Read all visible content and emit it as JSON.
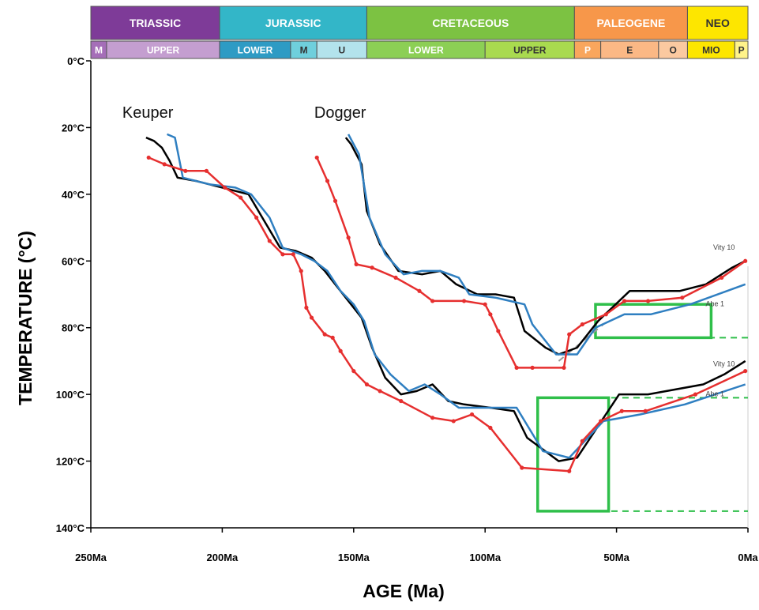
{
  "chart_data": {
    "type": "line",
    "xlabel": "AGE (Ma)",
    "ylabel": "TEMPERATURE (°C)",
    "xlim": [
      250,
      0
    ],
    "ylim": [
      0,
      140
    ],
    "y_inverted": true,
    "grid": false,
    "x_ticks": [
      {
        "value": 250,
        "label": "250Ma"
      },
      {
        "value": 200,
        "label": "200Ma"
      },
      {
        "value": 150,
        "label": "150Ma"
      },
      {
        "value": 100,
        "label": "100Ma"
      },
      {
        "value": 50,
        "label": "50Ma"
      },
      {
        "value": 0,
        "label": "0Ma"
      }
    ],
    "y_ticks": [
      {
        "value": 0,
        "label": "0°C"
      },
      {
        "value": 20,
        "label": "20°C"
      },
      {
        "value": 40,
        "label": "40°C"
      },
      {
        "value": 60,
        "label": "60°C"
      },
      {
        "value": 80,
        "label": "80°C"
      },
      {
        "value": 100,
        "label": "100°C"
      },
      {
        "value": 120,
        "label": "120°C"
      },
      {
        "value": 140,
        "label": "140°C"
      }
    ],
    "timescale": {
      "periods": [
        {
          "name": "TRIASSIC",
          "start": 252,
          "end": 201,
          "color": "#7e3b98",
          "text": "#ffffff"
        },
        {
          "name": "JURASSIC",
          "start": 201,
          "end": 145,
          "color": "#33b6c8",
          "text": "#ffffff"
        },
        {
          "name": "CRETACEOUS",
          "start": 145,
          "end": 66,
          "color": "#7cc242",
          "text": "#ffffff"
        },
        {
          "name": "PALEOGENE",
          "start": 66,
          "end": 23,
          "color": "#f7974a",
          "text": "#ffffff"
        },
        {
          "name": "NEO",
          "start": 23,
          "end": 0,
          "color": "#fde600",
          "text": "#333333"
        }
      ],
      "epochs": [
        {
          "name": "M",
          "start": 252,
          "end": 244,
          "color": "#a56eb8",
          "text": "#ffffff"
        },
        {
          "name": "UPPER",
          "start": 244,
          "end": 201,
          "color": "#c49ed0",
          "text": "#ffffff"
        },
        {
          "name": "LOWER",
          "start": 201,
          "end": 174,
          "color": "#2e9bc4",
          "text": "#ffffff"
        },
        {
          "name": "M",
          "start": 174,
          "end": 164,
          "color": "#6fcfdc",
          "text": "#333333"
        },
        {
          "name": "U",
          "start": 164,
          "end": 145,
          "color": "#b3e3ec",
          "text": "#333333"
        },
        {
          "name": "LOWER",
          "start": 145,
          "end": 100,
          "color": "#8ccf55",
          "text": "#ffffff"
        },
        {
          "name": "UPPER",
          "start": 100,
          "end": 66,
          "color": "#a9da4f",
          "text": "#333333"
        },
        {
          "name": "P",
          "start": 66,
          "end": 56,
          "color": "#f9a65d",
          "text": "#ffffff"
        },
        {
          "name": "E",
          "start": 56,
          "end": 34,
          "color": "#fbb885",
          "text": "#333333"
        },
        {
          "name": "O",
          "start": 34,
          "end": 23,
          "color": "#fbc9a0",
          "text": "#333333"
        },
        {
          "name": "MIO",
          "start": 23,
          "end": 5,
          "color": "#fde600",
          "text": "#333333"
        },
        {
          "name": "P",
          "start": 5,
          "end": 0,
          "color": "#fff38a",
          "text": "#333333"
        }
      ]
    },
    "annotations": [
      {
        "text": "Keuper",
        "x": 238,
        "y": 18
      },
      {
        "text": "Dogger",
        "x": 165,
        "y": 18
      }
    ],
    "well_labels": [
      {
        "text": "Vity 10",
        "x": 5,
        "y": 58
      },
      {
        "text": "Abe 1",
        "x": 9,
        "y": 75
      },
      {
        "text": "Vity 10",
        "x": 5,
        "y": 93
      },
      {
        "text": "Abe 1",
        "x": 9,
        "y": 102
      }
    ],
    "series": [
      {
        "color": "#000000",
        "group": "Keuper",
        "points": [
          [
            229,
            23
          ],
          [
            226,
            24
          ],
          [
            223,
            26
          ],
          [
            220,
            30
          ],
          [
            217,
            35
          ],
          [
            210,
            36
          ],
          [
            200,
            38
          ],
          [
            190,
            40
          ],
          [
            184,
            48
          ],
          [
            178,
            56
          ],
          [
            172,
            57
          ],
          [
            166,
            59
          ],
          [
            161,
            63
          ],
          [
            156,
            68
          ],
          [
            151,
            73
          ],
          [
            147,
            77
          ],
          [
            143,
            86
          ],
          [
            138,
            95
          ],
          [
            132,
            100
          ],
          [
            126,
            99
          ],
          [
            120,
            97
          ],
          [
            114,
            102
          ],
          [
            108,
            103
          ],
          [
            98,
            104
          ],
          [
            89,
            105
          ],
          [
            84,
            113
          ],
          [
            72,
            120
          ],
          [
            65,
            119
          ],
          [
            49,
            100
          ],
          [
            38,
            100
          ],
          [
            17,
            97
          ],
          [
            9,
            94
          ],
          [
            1,
            90
          ]
        ]
      },
      {
        "color": "#2f7fc1",
        "group": "Keuper",
        "points": [
          [
            221,
            22
          ],
          [
            218,
            23
          ],
          [
            215,
            35
          ],
          [
            205,
            37
          ],
          [
            195,
            38
          ],
          [
            189,
            40
          ],
          [
            182,
            47
          ],
          [
            177,
            56
          ],
          [
            170,
            58
          ],
          [
            165,
            60
          ],
          [
            160,
            63
          ],
          [
            155,
            69
          ],
          [
            150,
            73
          ],
          [
            146,
            78
          ],
          [
            142,
            88
          ],
          [
            136,
            94
          ],
          [
            129,
            99
          ],
          [
            123,
            97
          ],
          [
            117,
            100
          ],
          [
            110,
            104
          ],
          [
            98,
            104
          ],
          [
            88,
            104
          ],
          [
            78,
            117
          ],
          [
            68,
            119
          ],
          [
            55,
            108
          ],
          [
            41,
            106
          ],
          [
            24,
            103
          ],
          [
            1,
            97
          ]
        ]
      },
      {
        "color": "#e62f2f",
        "group": "Keuper",
        "points": [
          [
            228,
            29
          ],
          [
            222,
            31
          ],
          [
            214,
            33
          ],
          [
            206,
            33
          ],
          [
            199,
            38
          ],
          [
            193,
            41
          ],
          [
            187,
            47
          ],
          [
            182,
            54
          ],
          [
            177,
            58
          ],
          [
            173,
            58
          ],
          [
            170,
            63
          ],
          [
            168,
            74
          ],
          [
            166,
            77
          ],
          [
            161,
            82
          ],
          [
            158,
            83
          ],
          [
            155,
            87
          ],
          [
            150,
            93
          ],
          [
            145,
            97
          ],
          [
            140,
            99
          ],
          [
            132,
            102
          ],
          [
            120,
            107
          ],
          [
            112,
            108
          ],
          [
            105,
            106
          ],
          [
            98,
            110
          ],
          [
            86,
            122
          ],
          [
            68,
            123
          ],
          [
            63,
            114
          ],
          [
            56,
            108
          ],
          [
            48,
            105
          ],
          [
            39,
            105
          ],
          [
            20,
            100
          ],
          [
            1,
            93
          ]
        ]
      },
      {
        "color": "#000000",
        "group": "Dogger",
        "points": [
          [
            153,
            23
          ],
          [
            151,
            25
          ],
          [
            147,
            31
          ],
          [
            145,
            45
          ],
          [
            140,
            55
          ],
          [
            133,
            63
          ],
          [
            124,
            64
          ],
          [
            117,
            63
          ],
          [
            111,
            67
          ],
          [
            103,
            70
          ],
          [
            96,
            70
          ],
          [
            89,
            71
          ],
          [
            85,
            81
          ],
          [
            77,
            86
          ],
          [
            72,
            88
          ],
          [
            65,
            86
          ],
          [
            57,
            78
          ],
          [
            45,
            69
          ],
          [
            26,
            69
          ],
          [
            16,
            67
          ],
          [
            6,
            62
          ],
          [
            1,
            60
          ]
        ]
      },
      {
        "color": "#2f7fc1",
        "group": "Dogger",
        "points": [
          [
            152,
            22
          ],
          [
            148,
            28
          ],
          [
            144,
            47
          ],
          [
            138,
            58
          ],
          [
            131,
            64
          ],
          [
            124,
            63
          ],
          [
            117,
            63
          ],
          [
            110,
            65
          ],
          [
            106,
            70
          ],
          [
            96,
            71
          ],
          [
            85,
            73
          ],
          [
            82,
            79
          ],
          [
            73,
            88
          ],
          [
            65,
            88
          ],
          [
            58,
            80
          ],
          [
            47,
            76
          ],
          [
            37,
            76
          ],
          [
            22,
            73
          ],
          [
            1,
            67
          ]
        ]
      },
      {
        "color": "#e62f2f",
        "group": "Dogger",
        "points": [
          [
            164,
            29
          ],
          [
            160,
            36
          ],
          [
            157,
            42
          ],
          [
            152,
            53
          ],
          [
            149,
            61
          ],
          [
            143,
            62
          ],
          [
            134,
            65
          ],
          [
            125,
            69
          ],
          [
            120,
            72
          ],
          [
            108,
            72
          ],
          [
            100,
            73
          ],
          [
            98,
            76
          ],
          [
            95,
            81
          ],
          [
            88,
            92
          ],
          [
            82,
            92
          ],
          [
            70,
            92
          ],
          [
            68,
            82
          ],
          [
            63,
            79
          ],
          [
            54,
            76
          ],
          [
            47,
            72
          ],
          [
            38,
            72
          ],
          [
            25,
            71
          ],
          [
            10,
            65
          ],
          [
            1,
            60
          ]
        ]
      }
    ],
    "reference_lines": [
      {
        "color": "#2fbf4a",
        "style": "dashed",
        "y": 83,
        "x1": 15,
        "x2": 0
      },
      {
        "color": "#2fbf4a",
        "style": "dashed",
        "y": 101,
        "x1": 52,
        "x2": 0
      },
      {
        "color": "#2fbf4a",
        "style": "dashed",
        "y": 135,
        "x1": 52,
        "x2": 0
      },
      {
        "color": "#9a9a9a",
        "style": "dashed",
        "y": 90,
        "x1": 72,
        "x2": 55,
        "y2": 79
      }
    ],
    "constraint_boxes": [
      {
        "color": "#2fbf4a",
        "x1": 58,
        "x2": 14,
        "y1": 73,
        "y2": 83
      },
      {
        "color": "#2fbf4a",
        "x1": 80,
        "x2": 53,
        "y1": 101,
        "y2": 135
      }
    ]
  }
}
